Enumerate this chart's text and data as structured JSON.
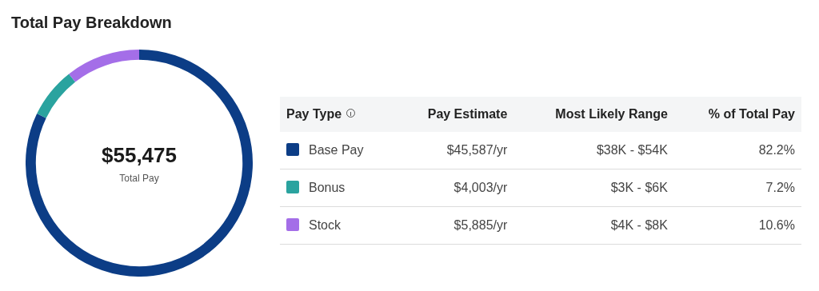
{
  "chart_data": {
    "type": "donut",
    "title": "Total Pay Breakdown",
    "categories": [
      "Base Pay",
      "Bonus",
      "Stock"
    ],
    "values": [
      45587,
      4003,
      5885
    ],
    "colors": [
      "#0c3d86",
      "#2aa39f",
      "#a46ee8"
    ],
    "value_labels": [
      "$45,587/yr",
      "$4,003/yr",
      "$5,885/yr"
    ],
    "legend": "right",
    "annotations": [
      "$55,475",
      "Total Pay",
      "Pay Type",
      "Pay Estimate",
      "Most Likely Range",
      "% of Total Pay",
      "$38K - $54K",
      "82.2%",
      "$3K - $6K",
      "7.2%",
      "$4K - $8K",
      "10.6%"
    ]
  }
}
